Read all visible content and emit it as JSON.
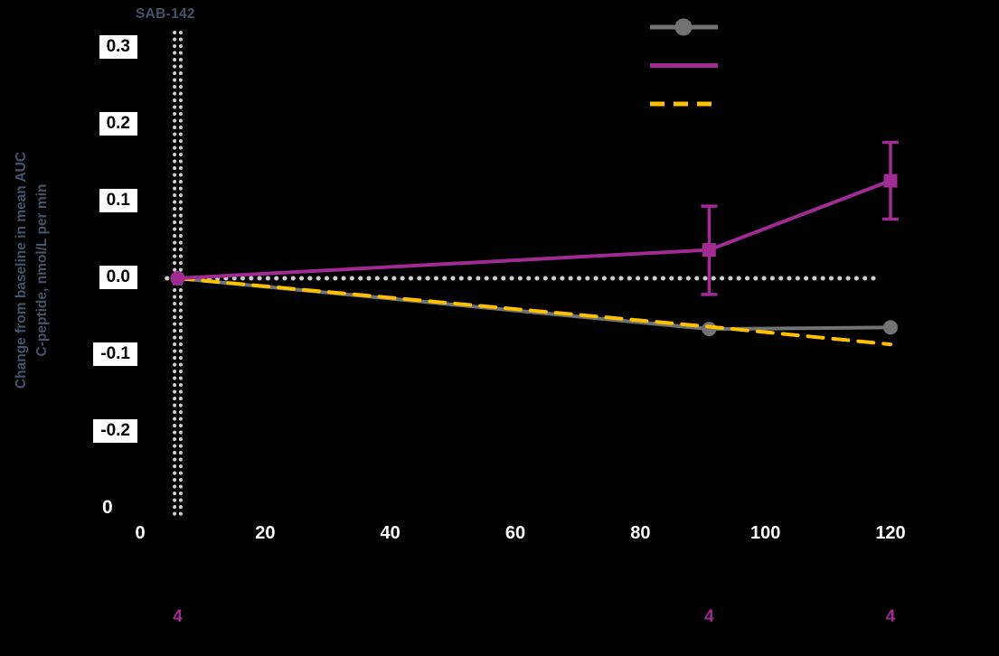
{
  "colors": {
    "background": "#000000",
    "slate_text": "#44546a",
    "axis_text": "#ffffff",
    "tick_label_text": "#000000",
    "tick_label_bg": "#ffffff",
    "reference_dots": "#cfcdcd",
    "series_gray": "#717477",
    "series_purple": "#a02b93",
    "series_yellow": "#ffc000"
  },
  "y_axis": {
    "title_line1": "Change from baseline in mean AUC",
    "title_line2": "C-peptide, nmol/L per min"
  },
  "annotations": {
    "dose_label": "SAB-142",
    "origin_label": "0"
  },
  "chart_data": {
    "type": "line",
    "title": "",
    "xlabel": "",
    "ylabel": "Change from baseline in mean AUC C-peptide, nmol/L per min",
    "xlim": [
      0,
      130
    ],
    "ylim": [
      -0.32,
      0.33
    ],
    "grid": false,
    "x_ticks": [
      {
        "label": "0",
        "value": 0
      },
      {
        "label": "20",
        "value": 20
      },
      {
        "label": "40",
        "value": 40
      },
      {
        "label": "60",
        "value": 60
      },
      {
        "label": "80",
        "value": 80
      },
      {
        "label": "100",
        "value": 100
      },
      {
        "label": "120",
        "value": 120
      }
    ],
    "y_ticks": [
      {
        "label": "0.3",
        "value": 0.3
      },
      {
        "label": "0.2",
        "value": 0.2
      },
      {
        "label": "0.1",
        "value": 0.1
      },
      {
        "label": "0.0",
        "value": 0.0
      },
      {
        "label": "-0.1",
        "value": -0.1
      },
      {
        "label": "-0.2",
        "value": -0.2
      }
    ],
    "reference_lines": {
      "horizontal_y": 0.0,
      "vertical_x": 6,
      "vertical_line_label": "SAB-142"
    },
    "series": [
      {
        "id": "series-gray-circle",
        "color": "#717477",
        "line_style": "solid",
        "marker": "circle",
        "points": [
          {
            "x": 6,
            "y": 0.0
          },
          {
            "x": 91,
            "y": -0.066
          },
          {
            "x": 120,
            "y": -0.064
          }
        ]
      },
      {
        "id": "series-yellow-dashed",
        "color": "#ffc000",
        "line_style": "dashed",
        "marker": "none",
        "points": [
          {
            "x": 6,
            "y": 0.0
          },
          {
            "x": 91,
            "y": -0.063
          },
          {
            "x": 120,
            "y": -0.086
          }
        ]
      },
      {
        "id": "series-purple-square",
        "color": "#a02b93",
        "line_style": "solid",
        "marker": "square",
        "first_marker": "circle",
        "points": [
          {
            "x": 6,
            "y": 0.0
          },
          {
            "x": 91,
            "y": 0.037,
            "err_up": 0.057,
            "err_down": 0.058
          },
          {
            "x": 120,
            "y": 0.127,
            "err_up": 0.05,
            "err_down": 0.05
          }
        ]
      }
    ],
    "legend": {
      "position": "top-right",
      "entries": [
        {
          "label": "",
          "color": "#717477",
          "line_style": "solid",
          "marker": "circle"
        },
        {
          "label": "",
          "color": "#a02b93",
          "line_style": "solid",
          "marker": "none"
        },
        {
          "label": "",
          "color": "#ffc000",
          "line_style": "dashed",
          "marker": "none"
        }
      ]
    },
    "at_risk_row": {
      "color": "#a02b93",
      "entries": [
        {
          "label": "4",
          "x": 6
        },
        {
          "label": "4",
          "x": 91
        },
        {
          "label": "4",
          "x": 120
        }
      ]
    }
  }
}
